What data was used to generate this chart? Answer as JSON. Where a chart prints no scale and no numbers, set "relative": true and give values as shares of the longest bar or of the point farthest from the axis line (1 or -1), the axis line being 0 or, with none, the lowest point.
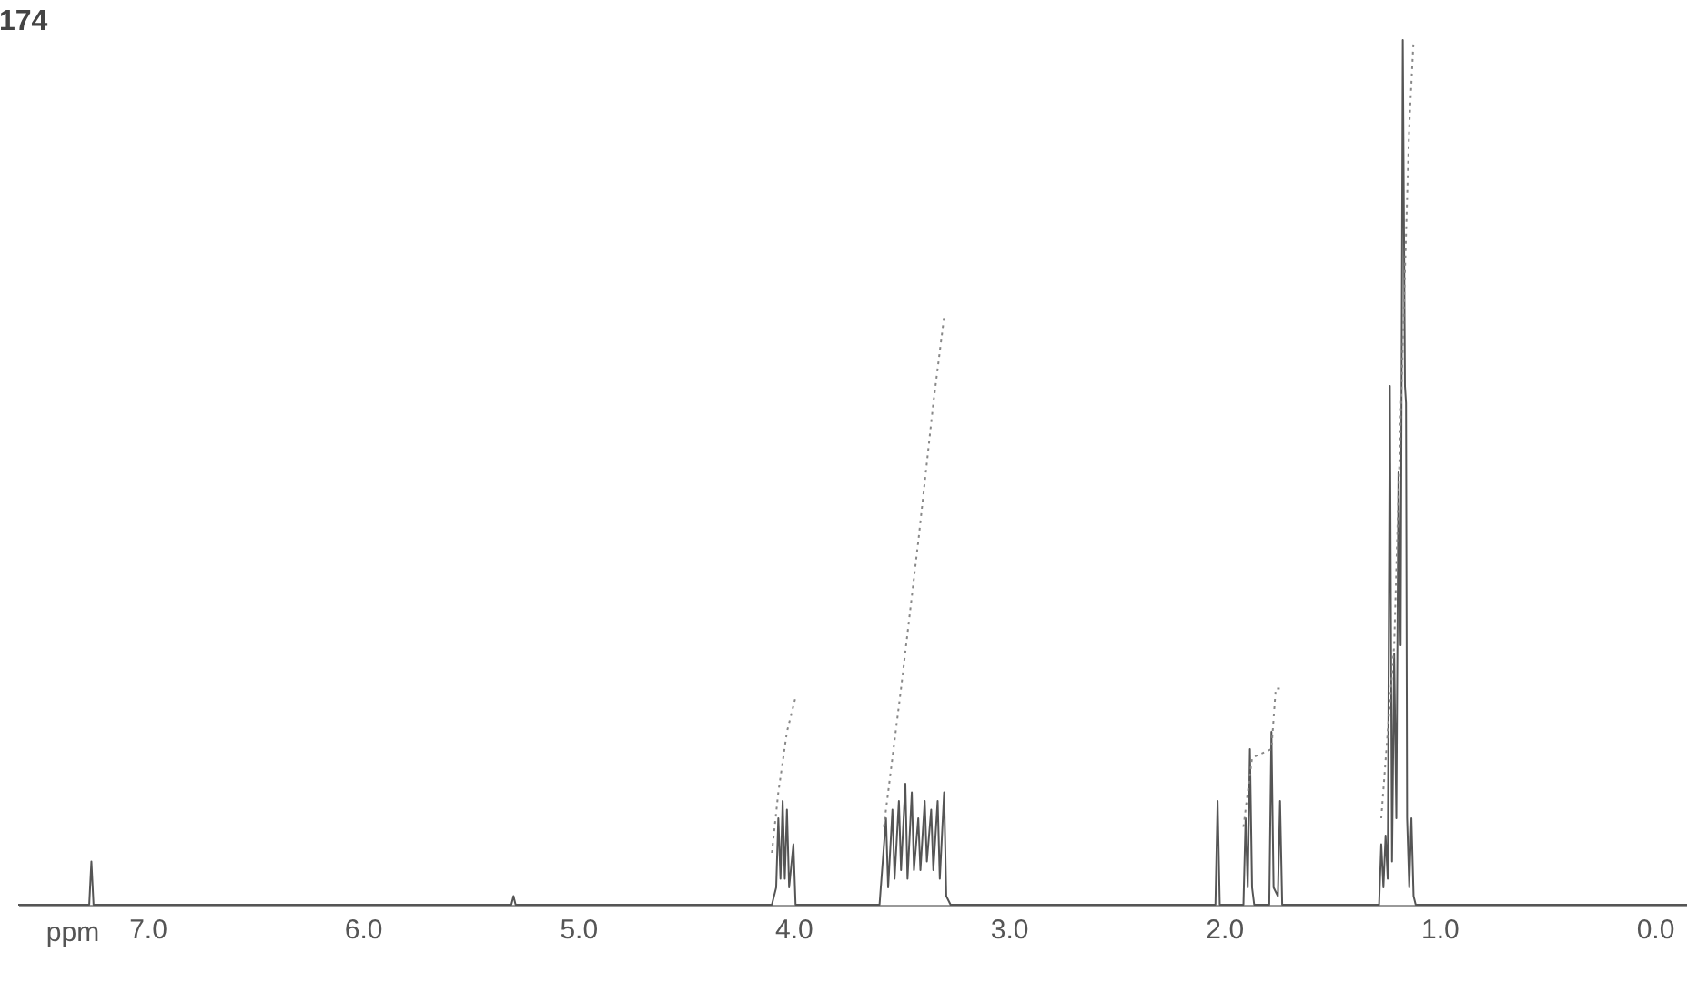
{
  "chart_data": {
    "type": "line",
    "title": "174",
    "xlabel": "ppm",
    "relative": true,
    "grid": false,
    "marker": "none",
    "xlim": [
      7.6,
      -0.15
    ],
    "xticks": [
      {
        "value": 7,
        "label": "7.0"
      },
      {
        "value": 6,
        "label": "6.0"
      },
      {
        "value": 5,
        "label": "5.0"
      },
      {
        "value": 4,
        "label": "4.0"
      },
      {
        "value": 3,
        "label": "3.0"
      },
      {
        "value": 2,
        "label": "2.0"
      },
      {
        "value": 1,
        "label": "1.0"
      },
      {
        "value": 0,
        "label": "0.0"
      }
    ],
    "series": [
      {
        "color": "#555555",
        "line_style": "solid",
        "x": [
          7.6,
          7.27,
          7.26,
          7.25,
          5.31,
          5.3,
          5.29,
          4.1,
          4.08,
          4.07,
          4.06,
          4.05,
          4.04,
          4.03,
          4.02,
          4.0,
          3.99,
          3.98,
          3.96,
          3.6,
          3.57,
          3.56,
          3.54,
          3.53,
          3.51,
          3.5,
          3.48,
          3.47,
          3.45,
          3.44,
          3.42,
          3.41,
          3.39,
          3.38,
          3.36,
          3.35,
          3.33,
          3.32,
          3.3,
          3.29,
          3.27,
          2.04,
          2.03,
          2.02,
          1.91,
          1.9,
          1.89,
          1.88,
          1.87,
          1.86,
          1.79,
          1.78,
          1.77,
          1.75,
          1.74,
          1.73,
          1.28,
          1.27,
          1.26,
          1.25,
          1.24,
          1.23,
          1.22,
          1.21,
          1.2,
          1.19,
          1.18,
          1.17,
          1.16,
          1.155,
          1.15,
          1.14,
          1.13,
          1.12,
          1.11,
          -0.15
        ],
        "values": [
          0,
          0,
          0.05,
          0,
          0,
          0.01,
          0,
          0,
          0.02,
          0.1,
          0.03,
          0.12,
          0.03,
          0.11,
          0.02,
          0.07,
          0,
          0,
          0,
          0,
          0.1,
          0.02,
          0.11,
          0.03,
          0.12,
          0.04,
          0.14,
          0.03,
          0.13,
          0.04,
          0.1,
          0.04,
          0.12,
          0.05,
          0.11,
          0.04,
          0.12,
          0.03,
          0.13,
          0.01,
          0,
          0,
          0.12,
          0,
          0,
          0.1,
          0.02,
          0.18,
          0.02,
          0,
          0,
          0.2,
          0.02,
          0.01,
          0.12,
          0,
          0,
          0.07,
          0.02,
          0.08,
          0.03,
          0.6,
          0.05,
          0.29,
          0.1,
          0.5,
          0.3,
          1.0,
          0.6,
          0.58,
          0.1,
          0.02,
          0.1,
          0.01,
          0,
          0
        ]
      },
      {
        "color": "#888888",
        "line_style": "dotted",
        "x": [
          4.1,
          4.07,
          4.03,
          3.99
        ],
        "values": [
          0.06,
          0.13,
          0.2,
          0.24
        ]
      },
      {
        "color": "#888888",
        "line_style": "dotted",
        "x": [
          3.58,
          3.5,
          3.42,
          3.35,
          3.3
        ],
        "values": [
          0.09,
          0.25,
          0.42,
          0.58,
          0.68
        ]
      },
      {
        "color": "#888888",
        "line_style": "dotted",
        "x": [
          1.91,
          1.87,
          1.78,
          1.76,
          1.73
        ],
        "values": [
          0.09,
          0.17,
          0.18,
          0.25,
          0.25
        ]
      },
      {
        "color": "#888888",
        "line_style": "dotted",
        "x": [
          1.27,
          1.21,
          1.17,
          1.14,
          1.12
        ],
        "values": [
          0.1,
          0.3,
          0.65,
          0.9,
          1.0
        ]
      }
    ]
  }
}
